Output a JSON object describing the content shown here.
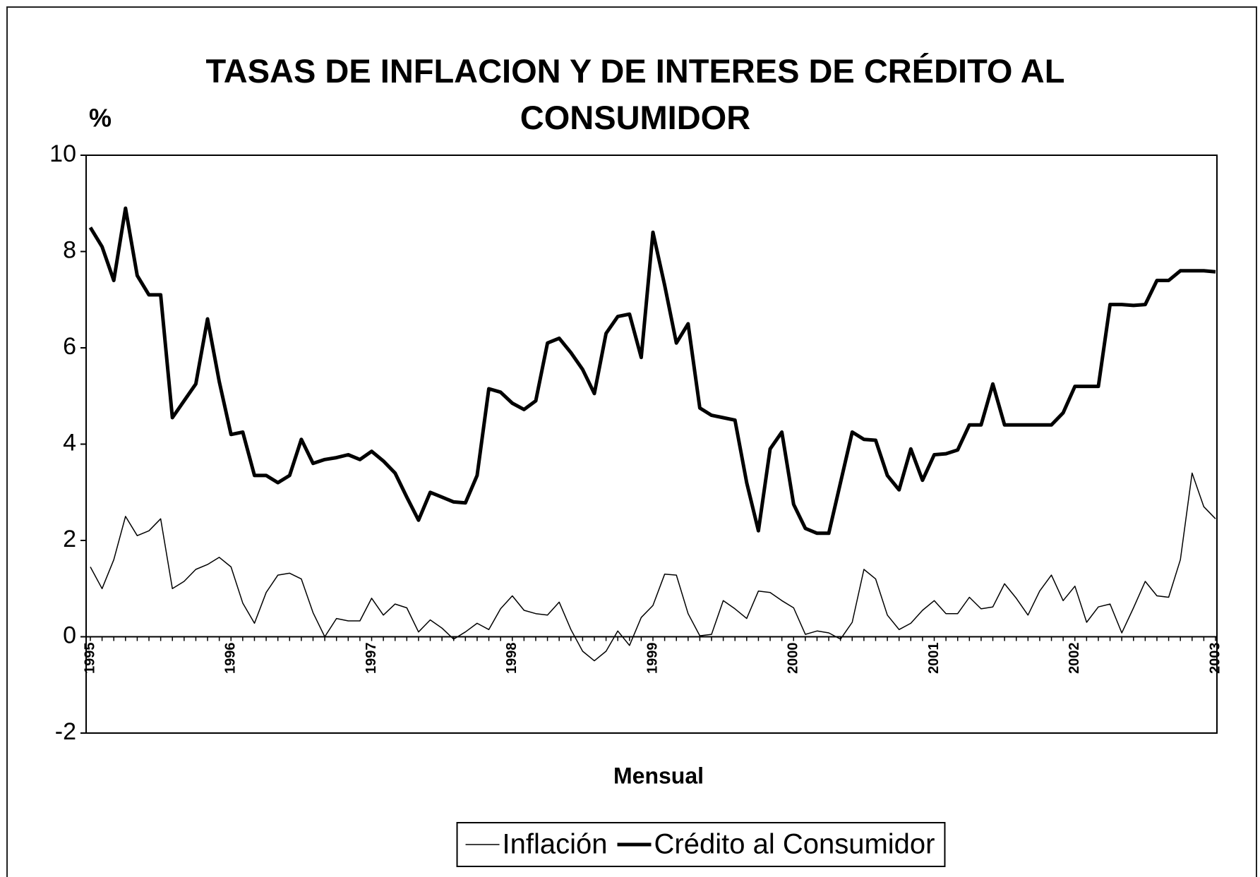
{
  "chart_data": {
    "type": "line",
    "title": "TASAS DE INFLACION Y DE INTERES DE CRÉDITO AL CONSUMIDOR",
    "y_label": "%",
    "x_label": "Mensual",
    "categories": [
      "1995",
      null,
      null,
      null,
      null,
      null,
      null,
      null,
      null,
      null,
      null,
      null,
      "1996",
      null,
      null,
      null,
      null,
      null,
      null,
      null,
      null,
      null,
      null,
      null,
      "1997",
      null,
      null,
      null,
      null,
      null,
      null,
      null,
      null,
      null,
      null,
      null,
      "1998",
      null,
      null,
      null,
      null,
      null,
      null,
      null,
      null,
      null,
      null,
      null,
      "1999",
      null,
      null,
      null,
      null,
      null,
      null,
      null,
      null,
      null,
      null,
      null,
      "2000",
      null,
      null,
      null,
      null,
      null,
      null,
      null,
      null,
      null,
      null,
      null,
      "2001",
      null,
      null,
      null,
      null,
      null,
      null,
      null,
      null,
      null,
      null,
      null,
      "2002",
      null,
      null,
      null,
      null,
      null,
      null,
      null,
      null,
      null,
      null,
      null,
      "2003"
    ],
    "series": [
      {
        "name": "Inflación",
        "color": "#000000",
        "line_width": 1.5,
        "values": [
          1.45,
          1.0,
          1.6,
          2.5,
          2.1,
          2.2,
          2.45,
          1.0,
          1.15,
          1.4,
          1.5,
          1.65,
          1.45,
          0.7,
          0.28,
          0.92,
          1.28,
          1.32,
          1.2,
          0.5,
          0.0,
          0.38,
          0.33,
          0.33,
          0.8,
          0.45,
          0.68,
          0.6,
          0.1,
          0.35,
          0.18,
          -0.05,
          0.1,
          0.28,
          0.15,
          0.58,
          0.85,
          0.55,
          0.48,
          0.45,
          0.72,
          0.15,
          -0.3,
          -0.5,
          -0.3,
          0.12,
          -0.18,
          0.4,
          0.65,
          1.3,
          1.28,
          0.48,
          0.02,
          0.05,
          0.75,
          0.58,
          0.38,
          0.95,
          0.92,
          0.75,
          0.6,
          0.05,
          0.12,
          0.08,
          -0.05,
          0.3,
          1.4,
          1.2,
          0.45,
          0.15,
          0.28,
          0.55,
          0.75,
          0.48,
          0.48,
          0.82,
          0.58,
          0.62,
          1.1,
          0.8,
          0.45,
          0.95,
          1.28,
          0.75,
          1.05,
          0.3,
          0.62,
          0.68,
          0.08,
          0.6,
          1.15,
          0.85,
          0.82,
          1.6,
          3.4,
          2.7,
          2.45
        ]
      },
      {
        "name": "Crédito al Consumidor",
        "color": "#000000",
        "line_width": 5,
        "values": [
          8.5,
          8.1,
          7.4,
          8.9,
          7.5,
          7.1,
          7.1,
          4.55,
          4.9,
          5.25,
          6.6,
          5.3,
          4.2,
          4.25,
          3.35,
          3.35,
          3.2,
          3.35,
          4.1,
          3.6,
          3.68,
          3.72,
          3.78,
          3.68,
          3.85,
          3.65,
          3.4,
          2.9,
          2.42,
          3.0,
          2.9,
          2.8,
          2.78,
          3.35,
          5.15,
          5.08,
          4.85,
          4.72,
          4.9,
          6.1,
          6.2,
          5.9,
          5.55,
          5.05,
          6.3,
          6.65,
          6.7,
          5.8,
          8.4,
          7.3,
          6.1,
          6.5,
          4.75,
          4.6,
          4.55,
          4.5,
          3.2,
          2.2,
          3.9,
          4.25,
          2.75,
          2.25,
          2.15,
          2.15,
          3.2,
          4.25,
          4.1,
          4.08,
          3.35,
          3.05,
          3.9,
          3.25,
          3.78,
          3.8,
          3.88,
          4.4,
          4.4,
          5.25,
          4.4,
          4.4,
          4.4,
          4.4,
          4.4,
          4.65,
          5.2,
          5.2,
          5.2,
          6.9,
          6.9,
          6.88,
          6.9,
          7.4,
          7.4,
          7.6,
          7.6,
          7.6,
          7.58
        ]
      }
    ],
    "ylim": [
      -2,
      10
    ],
    "yticks": [
      -2,
      0,
      2,
      4,
      6,
      8,
      10
    ],
    "grid": false,
    "legend": "bottom"
  }
}
